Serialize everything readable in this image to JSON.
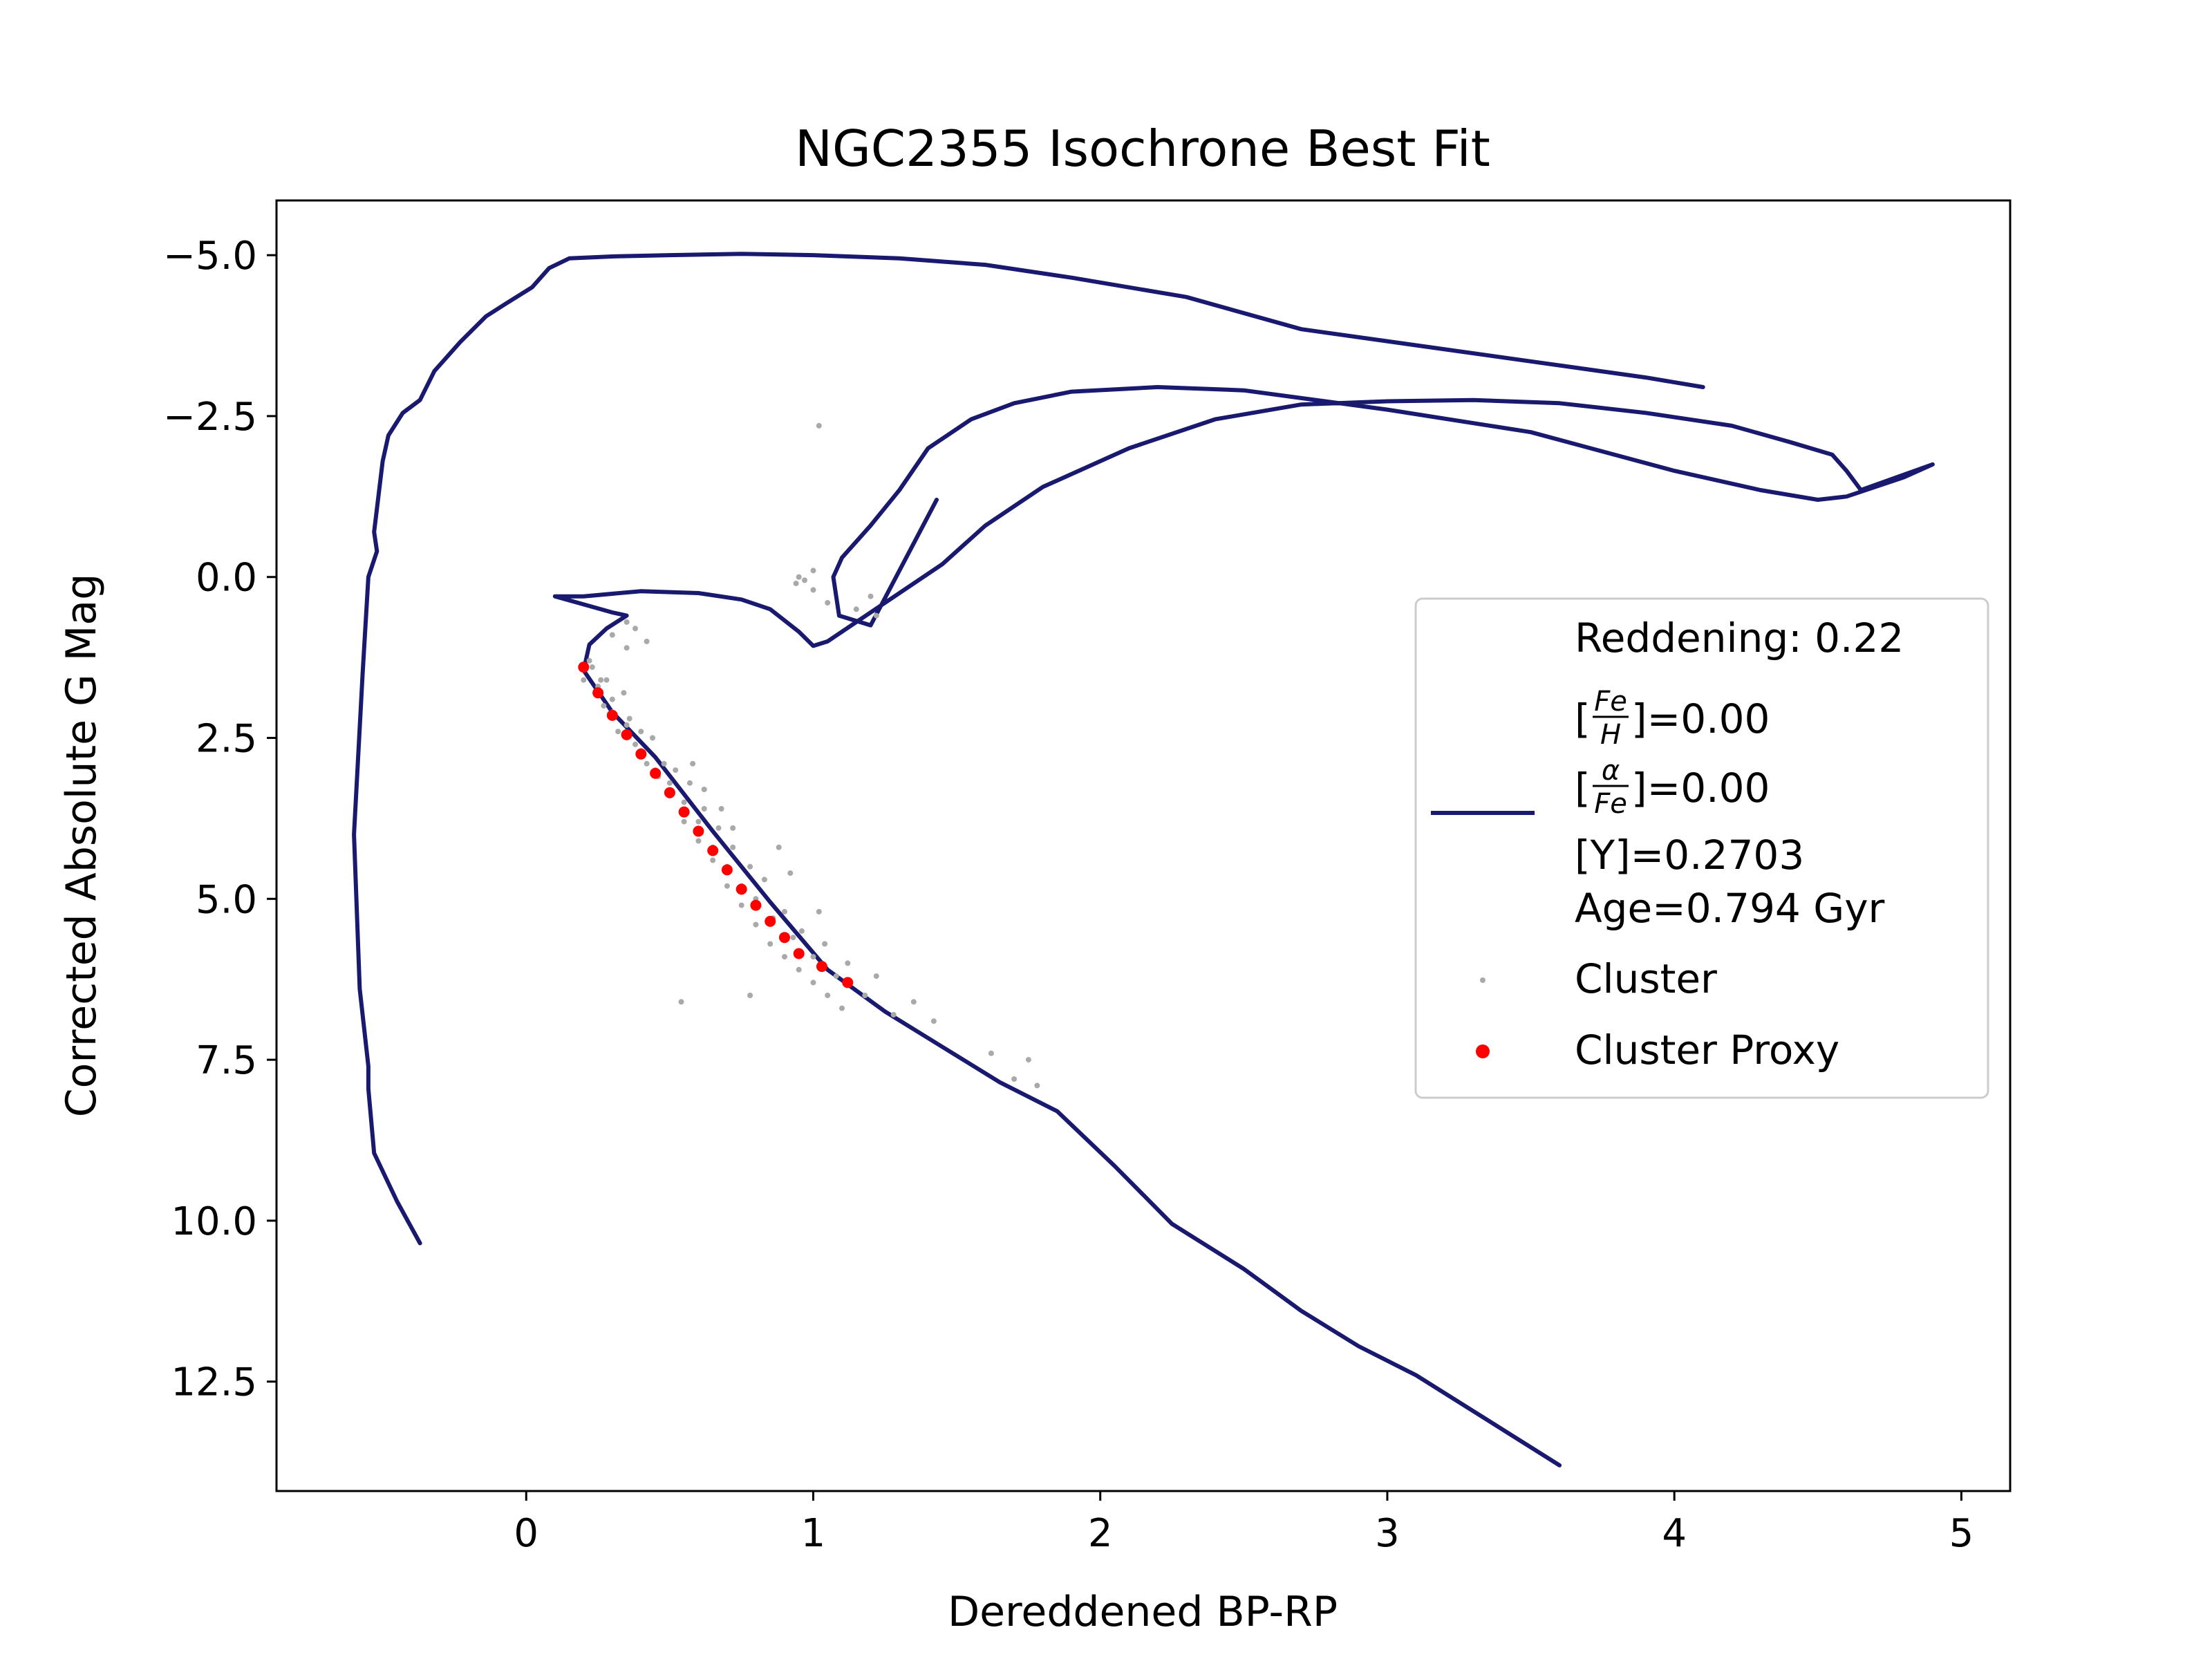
{
  "chart_data": {
    "type": "scatter",
    "title": "NGC2355 Isochrone Best Fit",
    "xlabel": "Dereddened BP-RP",
    "ylabel": "Corrected Absolute G Mag",
    "xlim": [
      -0.87,
      5.17
    ],
    "ylim": [
      14.2,
      -5.85
    ],
    "y_inverted": true,
    "grid": false,
    "legend_position": "center-right",
    "x_ticks": [
      0,
      1,
      2,
      3,
      4,
      5
    ],
    "x_tick_labels": [
      "0",
      "1",
      "2",
      "3",
      "4",
      "5"
    ],
    "y_ticks": [
      -5.0,
      -2.5,
      0.0,
      2.5,
      5.0,
      7.5,
      10.0,
      12.5
    ],
    "y_tick_labels": [
      "−5.0",
      "−2.5",
      "0.0",
      "2.5",
      "5.0",
      "7.5",
      "10.0",
      "12.5"
    ],
    "colors": {
      "isochrone": "#191970",
      "cluster": "#a9a9a9",
      "proxy": "#ff0000",
      "axes": "#000000",
      "legend_border": "#cccccc"
    },
    "legend": {
      "reddening": "Reddening: 0.22",
      "feh_prefix": "[",
      "feh_num": "Fe",
      "feh_den": "H",
      "feh_value": "]=0.00",
      "alpha_prefix": "[",
      "alpha_num": "α",
      "alpha_den": "Fe",
      "alpha_value": "]=0.00",
      "y_text": "[Y]=0.2703",
      "age_text": "Age=0.794 Gyr",
      "cluster_label": "Cluster",
      "proxy_label": "Cluster Proxy"
    },
    "series": [
      {
        "kind": "line",
        "x": [
          3.6,
          3.35,
          3.1,
          2.9,
          2.7,
          2.5,
          2.25,
          2.05,
          1.85,
          1.65,
          1.45,
          1.25,
          1.05,
          0.85,
          0.65,
          0.45,
          0.3,
          0.2,
          0.22,
          0.28,
          0.35,
          0.3,
          0.18,
          0.1,
          0.2,
          0.4,
          0.6,
          0.75,
          0.85,
          0.95,
          1.0,
          1.05,
          1.15,
          1.3,
          1.45,
          1.6,
          1.8,
          2.1,
          2.4,
          2.7,
          3.0,
          3.3,
          3.6,
          3.9,
          4.2,
          4.4,
          4.55,
          4.6,
          4.65,
          4.9,
          4.8,
          4.6,
          4.5,
          4.3,
          4.0,
          3.5,
          3.0,
          2.5,
          2.2,
          1.9,
          1.7,
          1.55,
          1.4,
          1.3,
          1.2,
          1.1,
          1.07,
          1.09,
          1.2,
          1.43
        ],
        "y": [
          13.8,
          13.1,
          12.4,
          11.95,
          11.4,
          10.75,
          10.05,
          9.15,
          8.3,
          7.85,
          7.3,
          6.75,
          6.1,
          5.05,
          3.95,
          2.8,
          2.1,
          1.45,
          1.05,
          0.8,
          0.6,
          0.55,
          0.4,
          0.3,
          0.3,
          0.22,
          0.25,
          0.35,
          0.5,
          0.85,
          1.07,
          1.0,
          0.7,
          0.25,
          -0.2,
          -0.8,
          -1.4,
          -2.0,
          -2.45,
          -2.68,
          -2.73,
          -2.75,
          -2.7,
          -2.55,
          -2.35,
          -2.1,
          -1.9,
          -1.65,
          -1.35,
          -1.75,
          -1.55,
          -1.25,
          -1.2,
          -1.35,
          -1.65,
          -2.25,
          -2.6,
          -2.9,
          -2.95,
          -2.88,
          -2.7,
          -2.45,
          -2.0,
          -1.35,
          -0.8,
          -0.3,
          0.0,
          0.6,
          0.75,
          -1.2
        ]
      },
      {
        "kind": "line",
        "x": [
          -0.37,
          -0.45,
          -0.53,
          -0.55,
          -0.55,
          -0.58,
          -0.6,
          -0.57,
          -0.55,
          -0.52,
          -0.53,
          -0.5,
          -0.48,
          -0.43,
          -0.37,
          -0.32,
          -0.23,
          -0.14,
          -0.07,
          0.02,
          0.08,
          0.15,
          0.3,
          0.5,
          0.75,
          1.0,
          1.3,
          1.6,
          1.9,
          2.3,
          2.7,
          3.1,
          3.5,
          3.9,
          4.1
        ],
        "y": [
          10.35,
          9.7,
          8.95,
          7.95,
          7.6,
          6.4,
          4.0,
          1.5,
          0.0,
          -0.4,
          -0.7,
          -1.8,
          -2.2,
          -2.55,
          -2.75,
          -3.2,
          -3.65,
          -4.05,
          -4.25,
          -4.5,
          -4.8,
          -4.95,
          -4.98,
          -5.0,
          -5.02,
          -5.0,
          -4.95,
          -4.85,
          -4.65,
          -4.35,
          -3.85,
          -3.6,
          -3.35,
          -3.1,
          -2.95
        ]
      },
      {
        "name": "Cluster",
        "kind": "scatter",
        "x": [
          0.2,
          0.23,
          0.25,
          0.27,
          0.28,
          0.3,
          0.32,
          0.34,
          0.36,
          0.38,
          0.4,
          0.42,
          0.44,
          0.46,
          0.48,
          0.5,
          0.52,
          0.55,
          0.57,
          0.6,
          0.62,
          0.65,
          0.67,
          0.7,
          0.72,
          0.75,
          0.78,
          0.8,
          0.83,
          0.86,
          0.9,
          0.93,
          0.96,
          1.0,
          1.04,
          1.08,
          1.12,
          1.18,
          1.22,
          1.28,
          1.35,
          1.42,
          1.62,
          1.7,
          1.75,
          1.78,
          0.22,
          0.26,
          0.3,
          0.35,
          0.4,
          0.45,
          0.5,
          0.55,
          0.6,
          0.65,
          0.7,
          0.75,
          0.8,
          0.85,
          0.9,
          0.95,
          1.0,
          1.05,
          1.1,
          0.3,
          0.35,
          0.42,
          0.54,
          0.78,
          0.95,
          1.0,
          1.02,
          1.2,
          1.22,
          1.0,
          0.97,
          0.94,
          1.05,
          1.15,
          0.35,
          0.38,
          0.58,
          0.62,
          0.68,
          0.72,
          0.88,
          0.92,
          1.02
        ],
        "y": [
          1.6,
          1.4,
          1.7,
          2.0,
          1.6,
          2.1,
          2.4,
          1.8,
          2.2,
          2.6,
          2.4,
          2.9,
          2.5,
          3.1,
          2.9,
          3.2,
          3.0,
          3.5,
          3.2,
          3.8,
          3.6,
          4.2,
          3.9,
          4.5,
          4.2,
          4.8,
          4.5,
          5.0,
          4.7,
          5.3,
          5.2,
          5.6,
          5.5,
          5.9,
          5.7,
          6.2,
          6.0,
          6.5,
          6.2,
          6.8,
          6.6,
          6.9,
          7.4,
          7.8,
          7.5,
          7.9,
          1.3,
          1.6,
          1.9,
          2.3,
          2.7,
          3.0,
          3.4,
          3.8,
          4.1,
          4.4,
          4.8,
          5.1,
          5.4,
          5.7,
          5.9,
          6.1,
          6.3,
          6.5,
          6.7,
          0.9,
          0.7,
          1.0,
          6.6,
          6.5,
          0.0,
          -0.1,
          -2.35,
          0.3,
          0.6,
          0.2,
          0.05,
          0.1,
          0.4,
          0.5,
          1.1,
          0.8,
          2.9,
          3.3,
          3.6,
          3.9,
          4.2,
          4.6,
          5.2
        ]
      },
      {
        "name": "Cluster Proxy",
        "kind": "scatter",
        "x": [
          0.2,
          0.25,
          0.3,
          0.35,
          0.4,
          0.45,
          0.5,
          0.55,
          0.6,
          0.65,
          0.7,
          0.75,
          0.8,
          0.85,
          0.9,
          0.95,
          1.03,
          1.12
        ],
        "y": [
          1.4,
          1.8,
          2.15,
          2.45,
          2.75,
          3.05,
          3.35,
          3.65,
          3.95,
          4.25,
          4.55,
          4.85,
          5.1,
          5.35,
          5.6,
          5.85,
          6.05,
          6.3
        ]
      }
    ]
  }
}
